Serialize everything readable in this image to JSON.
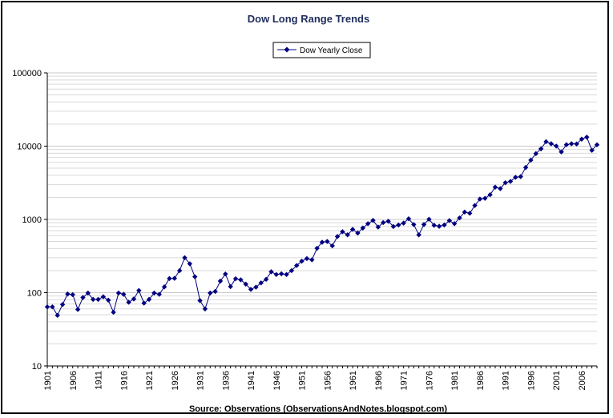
{
  "chart_data": {
    "type": "line",
    "title": "Dow Long Range Trends",
    "source": "Source: Observations (ObservationsAndNotes.blogspot.com)",
    "xlabel": "",
    "ylabel": "",
    "y_scale": "log",
    "ylim": [
      10,
      100000
    ],
    "y_ticks": [
      "10",
      "100",
      "1000",
      "10000",
      "100000"
    ],
    "xlim": [
      1901,
      2009
    ],
    "x_ticks": [
      "1901",
      "1906",
      "1911",
      "1916",
      "1921",
      "1926",
      "1931",
      "1936",
      "1941",
      "1946",
      "1951",
      "1956",
      "1961",
      "1966",
      "1971",
      "1976",
      "1981",
      "1986",
      "1991",
      "1996",
      "2001",
      "2006"
    ],
    "grid": "horizontal minor and major",
    "legend": "top-center",
    "colors": {
      "series": "#000080",
      "grid": "#c8c8c8",
      "frame": "#000000",
      "title": "#1f2d5c"
    },
    "series": [
      {
        "name": "Dow Yearly Close",
        "x": [
          1901,
          1902,
          1903,
          1904,
          1905,
          1906,
          1907,
          1908,
          1909,
          1910,
          1911,
          1912,
          1913,
          1914,
          1915,
          1916,
          1917,
          1918,
          1919,
          1920,
          1921,
          1922,
          1923,
          1924,
          1925,
          1926,
          1927,
          1928,
          1929,
          1930,
          1931,
          1932,
          1933,
          1934,
          1935,
          1936,
          1937,
          1938,
          1939,
          1940,
          1941,
          1942,
          1943,
          1944,
          1945,
          1946,
          1947,
          1948,
          1949,
          1950,
          1951,
          1952,
          1953,
          1954,
          1955,
          1956,
          1957,
          1958,
          1959,
          1960,
          1961,
          1962,
          1963,
          1964,
          1965,
          1966,
          1967,
          1968,
          1969,
          1970,
          1971,
          1972,
          1973,
          1974,
          1975,
          1976,
          1977,
          1978,
          1979,
          1980,
          1981,
          1982,
          1983,
          1984,
          1985,
          1986,
          1987,
          1988,
          1989,
          1990,
          1991,
          1992,
          1993,
          1994,
          1995,
          1996,
          1997,
          1998,
          1999,
          2000,
          2001,
          2002,
          2003,
          2004,
          2005,
          2006,
          2007,
          2008,
          2009
        ],
        "values": [
          64,
          64,
          49,
          69,
          96,
          94,
          59,
          86,
          99,
          81,
          81,
          88,
          79,
          54,
          99,
          95,
          74,
          82,
          107,
          72,
          81,
          99,
          95,
          120,
          156,
          157,
          200,
          300,
          248,
          165,
          78,
          60,
          99,
          104,
          144,
          180,
          121,
          155,
          150,
          131,
          111,
          119,
          136,
          152,
          193,
          177,
          181,
          177,
          200,
          235,
          269,
          292,
          281,
          404,
          488,
          500,
          436,
          584,
          679,
          616,
          731,
          652,
          763,
          874,
          969,
          786,
          905,
          944,
          800,
          839,
          890,
          1020,
          851,
          616,
          852,
          1005,
          831,
          805,
          839,
          964,
          875,
          1047,
          1259,
          1212,
          1547,
          1896,
          1939,
          2169,
          2753,
          2634,
          3169,
          3301,
          3754,
          3834,
          5117,
          6448,
          7908,
          9181,
          11497,
          10787,
          10022,
          8342,
          10454,
          10783,
          10718,
          12463,
          13265,
          8776,
          10428
        ]
      }
    ]
  }
}
